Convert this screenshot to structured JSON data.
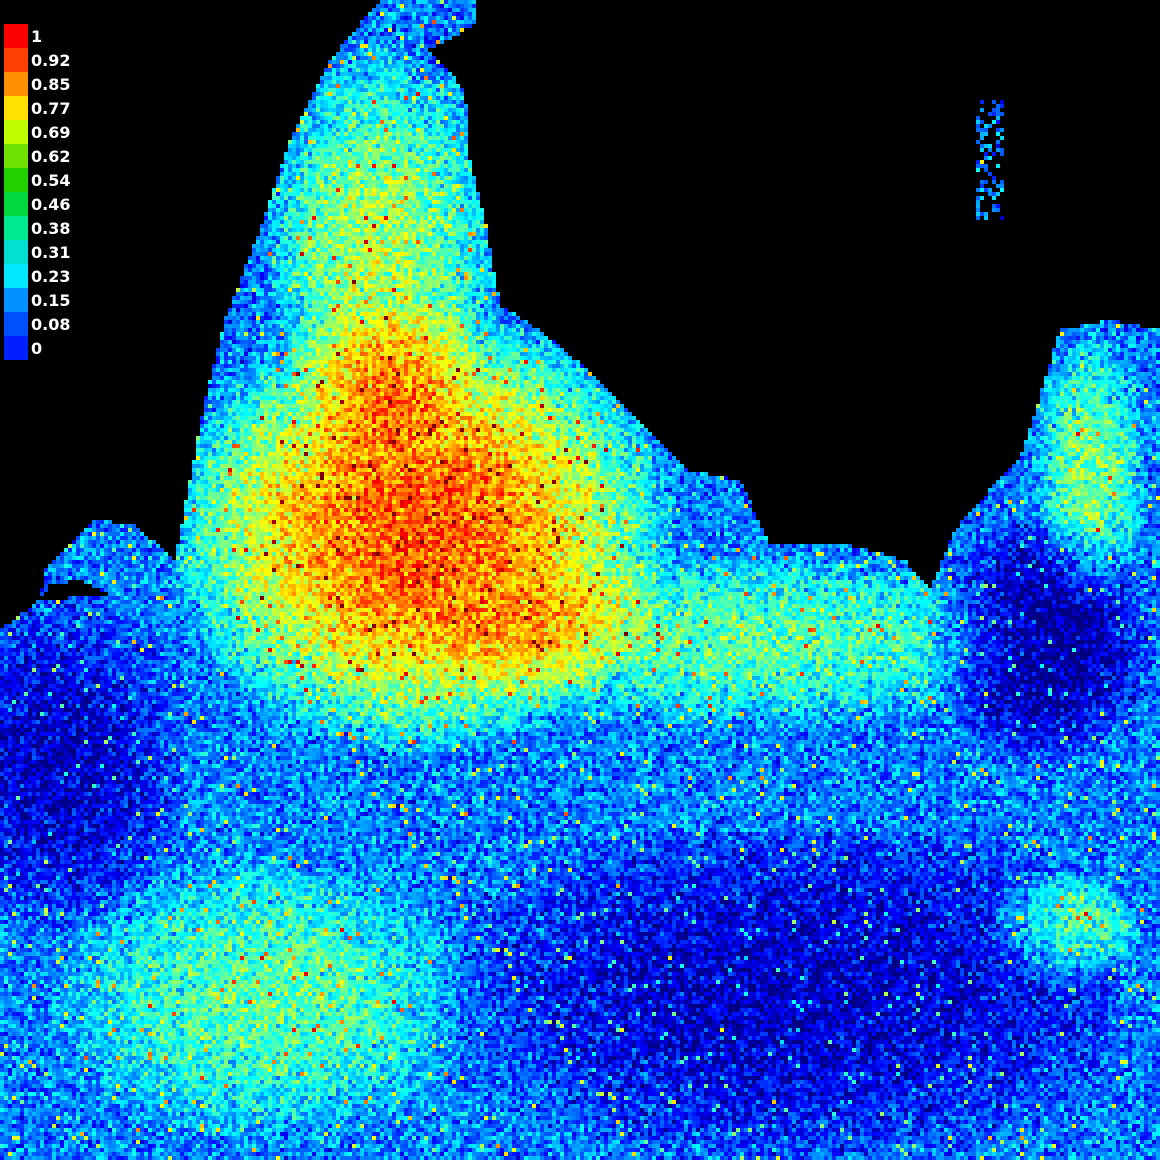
{
  "map": {
    "background_color": "#000000",
    "colormap": "jet",
    "value_range": [
      0,
      1
    ]
  },
  "legend": {
    "items": [
      {
        "label": "1",
        "color": "#ff0000"
      },
      {
        "label": "0.92",
        "color": "#ff4000"
      },
      {
        "label": "0.85",
        "color": "#ff9000"
      },
      {
        "label": "0.77",
        "color": "#ffe000"
      },
      {
        "label": "0.69",
        "color": "#c0ff00"
      },
      {
        "label": "0.62",
        "color": "#70e000"
      },
      {
        "label": "0.54",
        "color": "#20d000"
      },
      {
        "label": "0.46",
        "color": "#00d840"
      },
      {
        "label": "0.38",
        "color": "#00e890"
      },
      {
        "label": "0.31",
        "color": "#00e0d0"
      },
      {
        "label": "0.23",
        "color": "#00e8ff"
      },
      {
        "label": "0.15",
        "color": "#0090ff"
      },
      {
        "label": "0.08",
        "color": "#0050ff"
      },
      {
        "label": "0",
        "color": "#0020ff"
      }
    ]
  }
}
